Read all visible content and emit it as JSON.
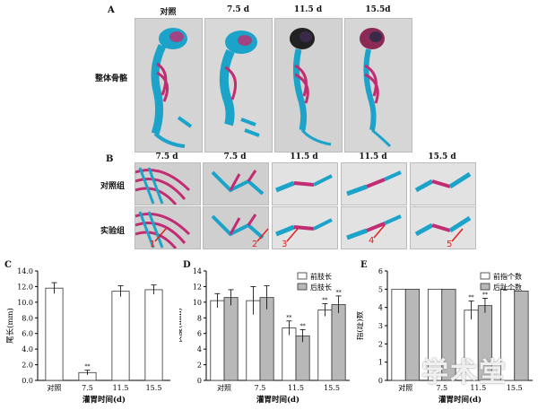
{
  "panelA": {
    "letter": "A",
    "columns": [
      "对照",
      "7.5 d",
      "11.5 d",
      "15.5d"
    ],
    "row_label": "整体骨骼"
  },
  "panelB": {
    "letter": "B",
    "columns": [
      "7.5 d",
      "7.5 d",
      "11.5 d",
      "11.5 d",
      "15.5 d"
    ],
    "rows": [
      "对照组",
      "实验组"
    ],
    "arrows": [
      "1",
      "2",
      "3",
      "4",
      "5"
    ]
  },
  "charts": [
    {
      "letter": "C",
      "type": "bar",
      "ylabel": "尾长(mm)",
      "xlabel": "灌胃时间(d)",
      "categories": [
        "对照",
        "7.5",
        "11.5",
        "15.5"
      ],
      "yticks": [
        "0.0",
        "2.0",
        "4.0",
        "6.0",
        "8.0",
        "10.0",
        "12.0",
        "14.0"
      ],
      "ylim": [
        0,
        14
      ],
      "series": [
        {
          "values": [
            11.8,
            1.0,
            11.4,
            11.6
          ],
          "errors": [
            0.7,
            0.3,
            0.7,
            0.6
          ],
          "color": "#ffffff"
        }
      ],
      "sig": [
        "",
        "**",
        "",
        ""
      ]
    },
    {
      "letter": "D",
      "type": "bar",
      "ylabel": "长度(mm)",
      "xlabel": "灌胃时间(d)",
      "categories": [
        "对照",
        "7.5",
        "11.5",
        "15.5"
      ],
      "yticks": [
        "0",
        "2",
        "4",
        "6",
        "8",
        "10",
        "12",
        "14"
      ],
      "ylim": [
        0,
        14
      ],
      "series": [
        {
          "name": "前肢长",
          "values": [
            10.2,
            10.2,
            6.7,
            9.0
          ],
          "errors": [
            0.9,
            1.8,
            0.9,
            0.8
          ],
          "color": "#ffffff"
        },
        {
          "name": "后肢长",
          "values": [
            10.6,
            10.6,
            5.7,
            9.7
          ],
          "errors": [
            1.0,
            1.5,
            0.8,
            1.1
          ],
          "color": "#b8b8b8"
        }
      ],
      "sig": [
        [
          "",
          ""
        ],
        [
          "",
          ""
        ],
        [
          "**",
          "**"
        ],
        [
          "**",
          "**"
        ]
      ],
      "legend": "top-right"
    },
    {
      "letter": "E",
      "type": "bar",
      "ylabel": "指(趾)数",
      "xlabel": "灌胃时间(d)",
      "categories": [
        "对照",
        "7.5",
        "11.5",
        "15.5"
      ],
      "yticks": [
        "0",
        "1",
        "2",
        "3",
        "4",
        "5",
        "6"
      ],
      "ylim": [
        0,
        6
      ],
      "series": [
        {
          "name": "前指个数",
          "values": [
            5,
            5,
            3.85,
            5
          ],
          "errors": [
            0,
            0,
            0.5,
            0
          ],
          "color": "#ffffff"
        },
        {
          "name": "后趾个数",
          "values": [
            5,
            5,
            4.1,
            4.9
          ],
          "errors": [
            0,
            0,
            0.4,
            0
          ],
          "color": "#b8b8b8"
        }
      ],
      "sig": [
        [
          "",
          ""
        ],
        [
          "",
          ""
        ],
        [
          "**",
          "**"
        ],
        [
          "",
          ""
        ]
      ],
      "legend": "top-right"
    }
  ],
  "watermark": "学术堂"
}
